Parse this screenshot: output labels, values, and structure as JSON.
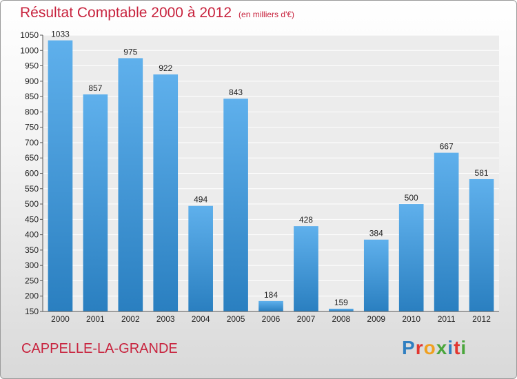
{
  "header": {
    "title": "Résultat Comptable 2000 à 2012",
    "subtitle": "(en milliers d'€)"
  },
  "footer": {
    "place": "CAPPELLE-LA-GRANDE",
    "logo": "Proxiti",
    "logo_colors": [
      "#2f7fc1",
      "#e2362f",
      "#f0a020",
      "#4aa63c",
      "#2f7fc1",
      "#e2362f",
      "#4aa63c"
    ]
  },
  "colors": {
    "bar_light": "#5fb0ec",
    "bar_dark": "#2a7fc0",
    "title_red": "#c8233e"
  },
  "chart_data": {
    "type": "bar",
    "categories": [
      "2000",
      "2001",
      "2002",
      "2003",
      "2004",
      "2005",
      "2006",
      "2007",
      "2008",
      "2009",
      "2010",
      "2011",
      "2012"
    ],
    "values": [
      1033,
      857,
      975,
      922,
      494,
      843,
      184,
      428,
      159,
      384,
      500,
      667,
      581
    ],
    "title": "Résultat Comptable 2000 à 2012",
    "xlabel": "",
    "ylabel": "",
    "ylim": [
      150,
      1050
    ],
    "yticks": [
      150,
      200,
      250,
      300,
      350,
      400,
      450,
      500,
      550,
      600,
      650,
      700,
      750,
      800,
      850,
      900,
      950,
      1000,
      1050
    ],
    "grid": true,
    "legend": "none"
  }
}
